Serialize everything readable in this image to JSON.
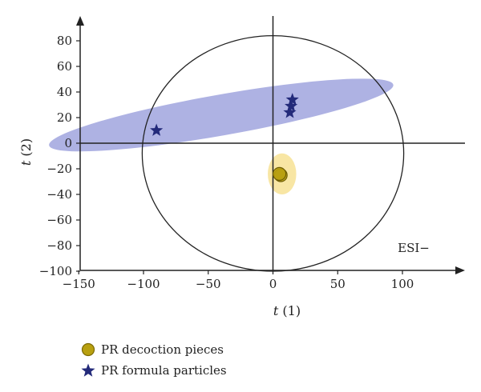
{
  "chart_data": {
    "type": "scatter",
    "xlabel_var": "t",
    "xlabel_sub": "(1)",
    "ylabel_var": "t",
    "ylabel_sub": "(2)",
    "xlim": [
      -150,
      150
    ],
    "ylim": [
      -100,
      95
    ],
    "xticks": [
      -150,
      -100,
      -50,
      0,
      50,
      100
    ],
    "yticks": [
      -100,
      -80,
      -60,
      -40,
      -20,
      0,
      20,
      40,
      60,
      80
    ],
    "annotation": "ESI−",
    "confidence_ellipse": {
      "cx": 0,
      "cy": -8,
      "rx": 101,
      "ry": 92
    },
    "series": [
      {
        "name": "PR decoction pieces",
        "marker": "circle",
        "color": "#b8a010",
        "region_color": "#f6de86",
        "region": {
          "cx": 7,
          "cy": -24,
          "rx": 11,
          "ry": 16,
          "rotate_deg": 0
        },
        "points": [
          {
            "x": 6,
            "y": -25
          },
          {
            "x": 5,
            "y": -24
          }
        ]
      },
      {
        "name": "PR formula particles",
        "marker": "star",
        "color": "#232a7a",
        "region_color": "#9a9fdc",
        "region": {
          "cx": -40,
          "cy": 22,
          "rx": 135,
          "ry": 16,
          "rotate_deg": -10
        },
        "points": [
          {
            "x": -90,
            "y": 10
          },
          {
            "x": 15,
            "y": 34
          },
          {
            "x": 14,
            "y": 29
          },
          {
            "x": 13,
            "y": 24
          }
        ]
      }
    ]
  },
  "legend": [
    {
      "label": "PR decoction pieces",
      "marker": "circle",
      "color": "#b8a010"
    },
    {
      "label": "PR formula particles",
      "marker": "star",
      "color": "#232a7a"
    }
  ]
}
